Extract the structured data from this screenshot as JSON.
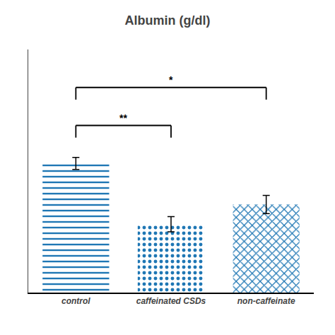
{
  "chart_data": {
    "type": "bar",
    "title": "Albumin (g/dl)",
    "categories": [
      "control",
      "caffeinated CSDs",
      "non-caffeinate"
    ],
    "values": [
      3.85,
      3.45,
      3.58
    ],
    "errors": [
      0.04,
      0.05,
      0.06
    ],
    "ylim": [
      3.0,
      4.6
    ],
    "yticks": [],
    "grid": false,
    "tick_labels": "x",
    "significance": [
      {
        "from": "control",
        "to": "caffeinated CSDs",
        "y": 4.1,
        "label": "**"
      },
      {
        "from": "control",
        "to": "non-caffeinate",
        "y": 4.35,
        "label": "*"
      }
    ]
  }
}
